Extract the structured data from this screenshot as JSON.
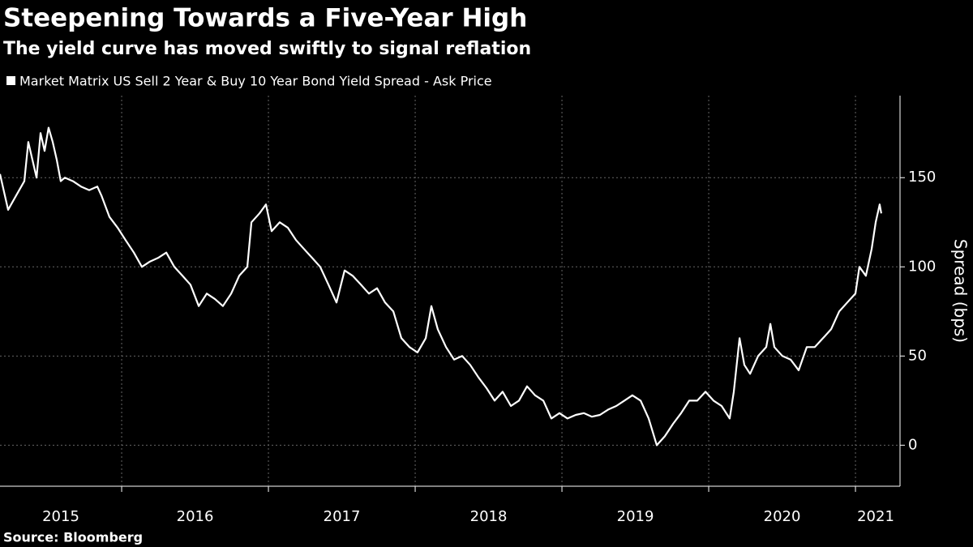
{
  "chart_data": {
    "type": "line",
    "title": "Steepening Towards a Five-Year High",
    "subtitle": "The yield curve has moved swiftly to signal reflation",
    "source": "Source: Bloomberg",
    "y_label": "Spread (bps)",
    "xlim": [
      2015.171,
      2021.276
    ],
    "xticks": [
      2015,
      2016,
      2017,
      2018,
      2019,
      2020,
      2021
    ],
    "ylim": [
      -23,
      196
    ],
    "yticks": [
      0,
      50,
      100,
      150
    ],
    "grid": true,
    "series": [
      {
        "name": "Market Matrix US Sell 2 Year & Buy 10 Year Bond Yield Spread - Ask Price",
        "color": "#ffffff",
        "x": [
          2015.171,
          2015.226,
          2015.281,
          2015.337,
          2015.364,
          2015.392,
          2015.42,
          2015.447,
          2015.475,
          2015.502,
          2015.53,
          2015.558,
          2015.585,
          2015.613,
          2015.668,
          2015.723,
          2015.779,
          2015.834,
          2015.862,
          2015.917,
          2015.972,
          2016.027,
          2016.083,
          2016.138,
          2016.193,
          2016.248,
          2016.304,
          2016.359,
          2016.414,
          2016.469,
          2016.525,
          2016.58,
          2016.635,
          2016.69,
          2016.746,
          2016.801,
          2016.856,
          2016.884,
          2016.939,
          2016.983,
          2017.022,
          2017.077,
          2017.132,
          2017.188,
          2017.243,
          2017.298,
          2017.353,
          2017.409,
          2017.464,
          2017.519,
          2017.574,
          2017.63,
          2017.685,
          2017.74,
          2017.795,
          2017.851,
          2017.906,
          2017.961,
          2018.016,
          2018.072,
          2018.11,
          2018.154,
          2018.21,
          2018.265,
          2018.32,
          2018.375,
          2018.431,
          2018.486,
          2018.541,
          2018.596,
          2018.652,
          2018.707,
          2018.762,
          2018.817,
          2018.873,
          2018.928,
          2018.983,
          2019.038,
          2019.094,
          2019.149,
          2019.204,
          2019.259,
          2019.315,
          2019.37,
          2019.425,
          2019.48,
          2019.536,
          2019.591,
          2019.646,
          2019.701,
          2019.757,
          2019.812,
          2019.867,
          2019.922,
          2019.978,
          2020.033,
          2020.088,
          2020.143,
          2020.171,
          2020.21,
          2020.243,
          2020.282,
          2020.337,
          2020.392,
          2020.42,
          2020.447,
          2020.502,
          2020.558,
          2020.613,
          2020.668,
          2020.723,
          2020.779,
          2020.834,
          2020.889,
          2020.944,
          2021.0,
          2021.027,
          2021.071,
          2021.11,
          2021.138,
          2021.165,
          2021.176
        ],
        "values": [
          152,
          132,
          140,
          148,
          170,
          160,
          150,
          175,
          165,
          178,
          170,
          160,
          148,
          150,
          148,
          145,
          143,
          145,
          140,
          128,
          122,
          115,
          108,
          100,
          103,
          105,
          108,
          100,
          95,
          90,
          78,
          85,
          82,
          78,
          85,
          95,
          100,
          125,
          130,
          135,
          120,
          125,
          122,
          115,
          110,
          105,
          100,
          90,
          80,
          98,
          95,
          90,
          85,
          88,
          80,
          75,
          60,
          55,
          52,
          60,
          78,
          65,
          55,
          48,
          50,
          45,
          38,
          32,
          25,
          30,
          22,
          25,
          33,
          28,
          25,
          15,
          18,
          15,
          17,
          18,
          16,
          17,
          20,
          22,
          25,
          28,
          25,
          15,
          0,
          5,
          12,
          18,
          25,
          25,
          30,
          25,
          22,
          15,
          30,
          60,
          45,
          40,
          50,
          55,
          68,
          55,
          50,
          48,
          42,
          55,
          55,
          60,
          65,
          75,
          80,
          85,
          100,
          95,
          110,
          125,
          135,
          130
        ]
      }
    ]
  }
}
